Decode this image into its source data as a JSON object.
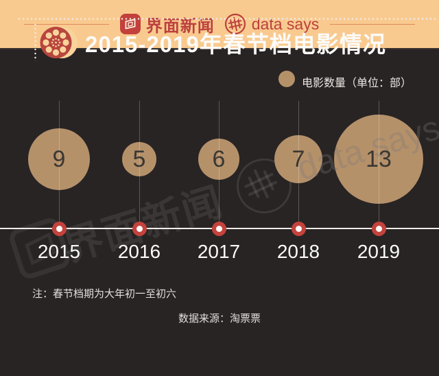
{
  "header": {
    "title": "2015-2019年春节档电影情况"
  },
  "legend": {
    "label": "电影数量（单位：部）",
    "color": "#b5916a"
  },
  "chart_data": {
    "type": "scatter",
    "subtype": "bubble-timeline",
    "title": "2015-2019年春节档电影情况",
    "categories": [
      "2015",
      "2016",
      "2017",
      "2018",
      "2019"
    ],
    "values": [
      9,
      5,
      6,
      7,
      13
    ],
    "series_label": "电影数量（单位：部）",
    "bubble_color": "#b5916a",
    "radius_px_per_unit": 5,
    "axis": "horizontal timeline with red dot markers per year",
    "legend_position": "top-right"
  },
  "notes": {
    "note": "注：春节档期为大年初一至初六",
    "source": "数据来源：淘票票"
  },
  "watermarks": {
    "jiemian": "界面新闻",
    "datasays": "data says"
  },
  "footer": {
    "brand_jiemian": "界面新闻",
    "brand_datasays": "data says"
  },
  "colors": {
    "background": "#282424",
    "bubble": "#b5916a",
    "marker_red": "#c5433d",
    "axis_line": "#f1eeea",
    "footer_bg": "#f9ca8f",
    "footer_red": "#bc403e",
    "reel_red": "#b8453e",
    "reel_cream": "#f8d49c"
  }
}
